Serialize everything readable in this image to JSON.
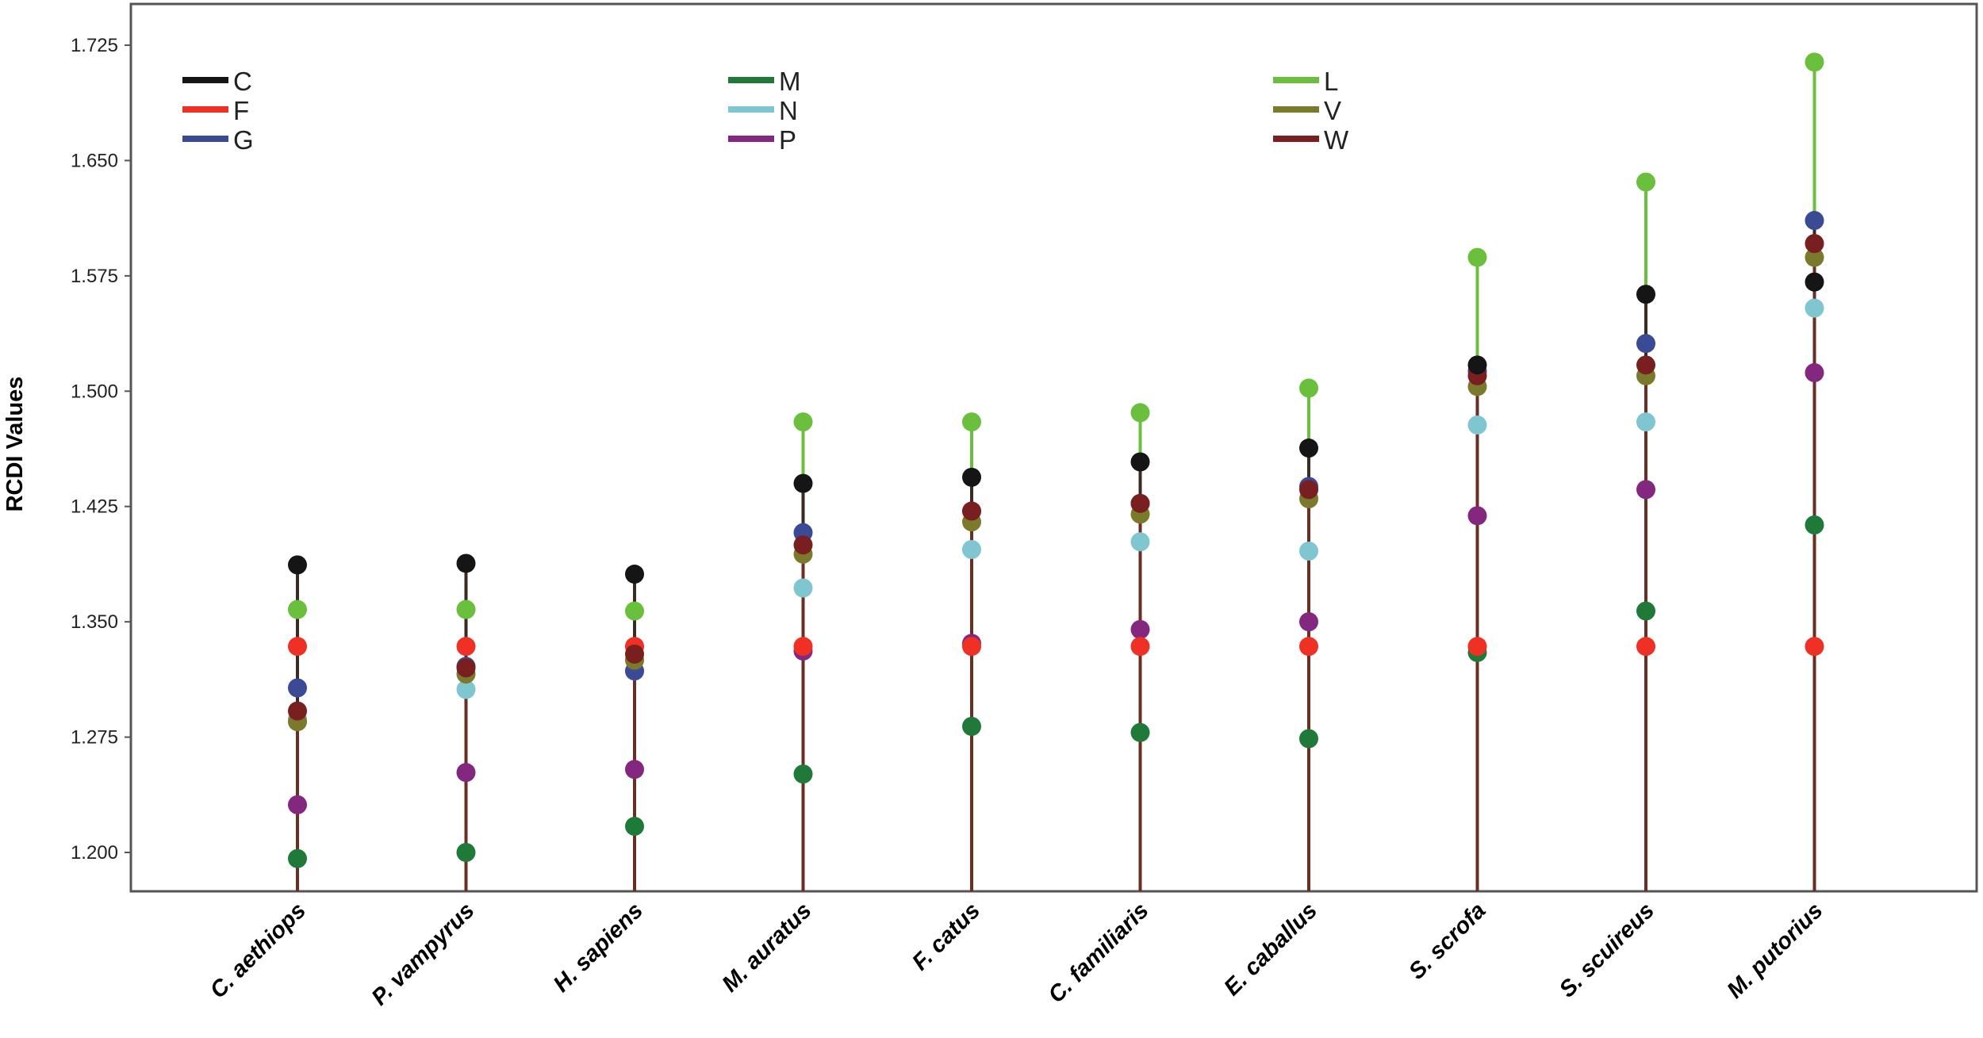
{
  "chart_data": {
    "type": "scatter",
    "title": "",
    "xlabel": "",
    "ylabel": "RCDI Values",
    "ylim": [
      1.175,
      1.755
    ],
    "yticks": [
      "1.200",
      "1.275",
      "1.350",
      "1.425",
      "1.500",
      "1.575",
      "1.650",
      "1.725"
    ],
    "categories": [
      "C. aethiops",
      "P. vampyrus",
      "H. sapiens",
      "M. auratus",
      "F. catus",
      "C. familiaris",
      "E. caballus",
      "S. scrofa",
      "S. scuireus",
      "M. putorius"
    ],
    "series": [
      {
        "name": "C",
        "color": "#151515",
        "values": [
          1.387,
          1.388,
          1.381,
          1.44,
          1.444,
          1.454,
          1.463,
          1.517,
          1.563,
          1.571
        ]
      },
      {
        "name": "F",
        "color": "#ee3124",
        "values": [
          1.334,
          1.334,
          1.334,
          1.334,
          1.334,
          1.334,
          1.334,
          1.334,
          1.334,
          1.334
        ]
      },
      {
        "name": "G",
        "color": "#3b4a94",
        "values": [
          1.307,
          1.321,
          1.318,
          1.408,
          1.422,
          1.427,
          1.438,
          1.513,
          1.531,
          1.611
        ]
      },
      {
        "name": "M",
        "color": "#1f7a3a",
        "values": [
          1.196,
          1.2,
          1.217,
          1.251,
          1.282,
          1.278,
          1.274,
          1.33,
          1.357,
          1.413
        ]
      },
      {
        "name": "N",
        "color": "#7fc6d0",
        "values": [
          1.287,
          1.306,
          1.318,
          1.372,
          1.397,
          1.402,
          1.396,
          1.478,
          1.48,
          1.554
        ]
      },
      {
        "name": "P",
        "color": "#84287f",
        "values": [
          1.231,
          1.252,
          1.254,
          1.331,
          1.336,
          1.345,
          1.35,
          1.419,
          1.436,
          1.512
        ]
      },
      {
        "name": "L",
        "color": "#6abf3d",
        "values": [
          1.358,
          1.358,
          1.357,
          1.48,
          1.48,
          1.486,
          1.502,
          1.587,
          1.636,
          1.714
        ]
      },
      {
        "name": "V",
        "color": "#7b7a2c",
        "values": [
          1.285,
          1.316,
          1.325,
          1.394,
          1.415,
          1.42,
          1.43,
          1.503,
          1.51,
          1.587
        ]
      },
      {
        "name": "W",
        "color": "#7a1f1f",
        "values": [
          1.292,
          1.32,
          1.329,
          1.4,
          1.422,
          1.427,
          1.436,
          1.51,
          1.517,
          1.596
        ]
      }
    ],
    "stem_color": "#6b2e22",
    "legend": {
      "columns": [
        [
          "C",
          "F",
          "G"
        ],
        [
          "M",
          "N",
          "P"
        ],
        [
          "L",
          "V",
          "W"
        ]
      ]
    }
  }
}
